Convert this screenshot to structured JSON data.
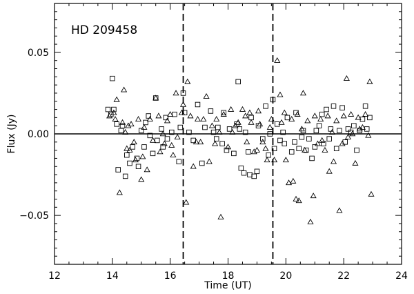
{
  "chart_data": {
    "type": "scatter",
    "title": "",
    "annotation": "HD 209458",
    "xlabel": "Time (UT)",
    "ylabel": "Flux (Jy)",
    "xlim": [
      12,
      24
    ],
    "ylim": [
      -0.08,
      0.08
    ],
    "x_ticks": [
      12,
      14,
      16,
      18,
      20,
      22,
      24
    ],
    "x_tick_labels": [
      "12",
      "14",
      "16",
      "18",
      "20",
      "22",
      "24"
    ],
    "y_ticks": [
      -0.05,
      0.0,
      0.05
    ],
    "y_tick_labels": [
      "−0.05",
      "0.00",
      "0.05"
    ],
    "reference_lines": {
      "horizontal_y": 0.0,
      "vertical_dashed_x": [
        16.45,
        19.55
      ]
    },
    "grid": false,
    "series": [
      {
        "marker": "square",
        "points": [
          [
            13.85,
            0.015
          ],
          [
            13.95,
            0.012
          ],
          [
            14.0,
            0.034
          ],
          [
            14.05,
            0.015
          ],
          [
            14.15,
            0.006
          ],
          [
            14.2,
            -0.022
          ],
          [
            14.3,
            0.002
          ],
          [
            14.35,
            0.005
          ],
          [
            14.45,
            -0.026
          ],
          [
            14.5,
            -0.013
          ],
          [
            14.6,
            -0.018
          ],
          [
            14.7,
            -0.008
          ],
          [
            14.85,
            -0.015
          ],
          [
            14.9,
            -0.02
          ],
          [
            15.0,
            0.002
          ],
          [
            15.1,
            -0.008
          ],
          [
            15.15,
            0.007
          ],
          [
            15.25,
            0.011
          ],
          [
            15.3,
            -0.001
          ],
          [
            15.4,
            -0.012
          ],
          [
            15.5,
            0.022
          ],
          [
            15.55,
            -0.004
          ],
          [
            15.7,
            0.003
          ],
          [
            15.75,
            -0.008
          ],
          [
            15.85,
            0.01
          ],
          [
            15.9,
            -0.003
          ],
          [
            16.05,
            0.001
          ],
          [
            16.15,
            0.012
          ],
          [
            16.3,
            -0.017
          ],
          [
            16.35,
            0.004
          ],
          [
            16.45,
            0.025
          ],
          [
            16.5,
            0.013
          ],
          [
            16.65,
            0.001
          ],
          [
            16.8,
            -0.004
          ],
          [
            16.95,
            0.018
          ],
          [
            17.1,
            -0.018
          ],
          [
            17.2,
            0.004
          ],
          [
            17.4,
            0.014
          ],
          [
            17.5,
            0.001
          ],
          [
            17.6,
            -0.003
          ],
          [
            17.65,
            0.004
          ],
          [
            17.8,
            -0.006
          ],
          [
            17.85,
            0.013
          ],
          [
            17.95,
            -0.01
          ],
          [
            18.05,
            0.003
          ],
          [
            18.2,
            -0.012
          ],
          [
            18.3,
            0.006
          ],
          [
            18.35,
            0.032
          ],
          [
            18.4,
            0.003
          ],
          [
            18.45,
            -0.021
          ],
          [
            18.55,
            -0.024
          ],
          [
            18.6,
            0.001
          ],
          [
            18.7,
            -0.011
          ],
          [
            18.75,
            -0.025
          ],
          [
            18.8,
            0.01
          ],
          [
            18.9,
            -0.026
          ],
          [
            19.0,
            -0.023
          ],
          [
            19.05,
            0.005
          ],
          [
            19.2,
            -0.003
          ],
          [
            19.3,
            0.017
          ],
          [
            19.4,
            -0.013
          ],
          [
            19.45,
            0.0
          ],
          [
            19.55,
            0.021
          ],
          [
            19.6,
            -0.009
          ],
          [
            19.7,
            0.006
          ],
          [
            19.8,
            -0.004
          ],
          [
            19.9,
            0.001
          ],
          [
            19.95,
            -0.006
          ],
          [
            20.05,
            0.01
          ],
          [
            20.2,
            -0.011
          ],
          [
            20.3,
            -0.005
          ],
          [
            20.35,
            0.013
          ],
          [
            20.45,
            -0.009
          ],
          [
            20.55,
            -0.002
          ],
          [
            20.6,
            0.002
          ],
          [
            20.7,
            -0.01
          ],
          [
            20.8,
            -0.003
          ],
          [
            20.9,
            -0.015
          ],
          [
            21.0,
            -0.008
          ],
          [
            21.05,
            0.002
          ],
          [
            21.15,
            0.005
          ],
          [
            21.25,
            0.012
          ],
          [
            21.3,
            -0.006
          ],
          [
            21.4,
            0.015
          ],
          [
            21.5,
            -0.003
          ],
          [
            21.55,
            0.003
          ],
          [
            21.65,
            0.017
          ],
          [
            21.75,
            -0.009
          ],
          [
            21.85,
            0.002
          ],
          [
            21.95,
            0.016
          ],
          [
            22.05,
            -0.005
          ],
          [
            22.15,
            0.003
          ],
          [
            22.25,
            0.001
          ],
          [
            22.35,
            0.005
          ],
          [
            22.45,
            -0.01
          ],
          [
            22.55,
            0.002
          ],
          [
            22.65,
            0.009
          ],
          [
            22.75,
            0.017
          ],
          [
            22.8,
            0.003
          ],
          [
            22.9,
            0.01
          ]
        ]
      },
      {
        "marker": "triangle",
        "points": [
          [
            13.9,
            0.011
          ],
          [
            14.05,
            0.013
          ],
          [
            14.1,
            0.009
          ],
          [
            14.15,
            0.021
          ],
          [
            14.25,
            -0.036
          ],
          [
            14.35,
            0.007
          ],
          [
            14.4,
            0.027
          ],
          [
            14.45,
            0.001
          ],
          [
            14.5,
            -0.009
          ],
          [
            14.55,
            0.005
          ],
          [
            14.6,
            -0.01
          ],
          [
            14.65,
            0.006
          ],
          [
            14.75,
            -0.005
          ],
          [
            14.8,
            -0.016
          ],
          [
            14.9,
            0.009
          ],
          [
            15.0,
            -0.028
          ],
          [
            15.05,
            -0.014
          ],
          [
            15.1,
            0.004
          ],
          [
            15.2,
            -0.022
          ],
          [
            15.3,
            0.009
          ],
          [
            15.4,
            -0.004
          ],
          [
            15.5,
            0.022
          ],
          [
            15.6,
            0.011
          ],
          [
            15.65,
            -0.011
          ],
          [
            15.75,
            0.0
          ],
          [
            15.8,
            -0.006
          ],
          [
            15.9,
            0.008
          ],
          [
            16.0,
            0.012
          ],
          [
            16.05,
            -0.007
          ],
          [
            16.1,
            -0.013
          ],
          [
            16.2,
            0.025
          ],
          [
            16.25,
            -0.002
          ],
          [
            16.4,
            0.013
          ],
          [
            16.45,
            0.018
          ],
          [
            16.55,
            -0.042
          ],
          [
            16.6,
            0.032
          ],
          [
            16.7,
            0.011
          ],
          [
            16.8,
            -0.02
          ],
          [
            16.9,
            -0.005
          ],
          [
            16.95,
            0.009
          ],
          [
            17.05,
            -0.005
          ],
          [
            17.15,
            0.009
          ],
          [
            17.25,
            0.023
          ],
          [
            17.35,
            -0.017
          ],
          [
            17.45,
            0.005
          ],
          [
            17.55,
            -0.006
          ],
          [
            17.6,
            0.009
          ],
          [
            17.7,
            0.001
          ],
          [
            17.75,
            -0.051
          ],
          [
            17.85,
            0.012
          ],
          [
            18.0,
            -0.008
          ],
          [
            18.1,
            0.015
          ],
          [
            18.15,
            0.001
          ],
          [
            18.25,
            0.005
          ],
          [
            18.35,
            0.007
          ],
          [
            18.5,
            0.015
          ],
          [
            18.6,
            0.011
          ],
          [
            18.65,
            -0.005
          ],
          [
            18.75,
            0.013
          ],
          [
            18.8,
            0.007
          ],
          [
            18.9,
            -0.011
          ],
          [
            19.0,
            -0.01
          ],
          [
            19.05,
            0.014
          ],
          [
            19.1,
            0.006
          ],
          [
            19.2,
            -0.005
          ],
          [
            19.3,
            -0.009
          ],
          [
            19.35,
            -0.016
          ],
          [
            19.45,
            0.004
          ],
          [
            19.5,
            0.009
          ],
          [
            19.6,
            -0.016
          ],
          [
            19.7,
            0.045
          ],
          [
            19.8,
            0.024
          ],
          [
            19.85,
            0.007
          ],
          [
            19.95,
            0.013
          ],
          [
            20.0,
            -0.016
          ],
          [
            20.1,
            -0.03
          ],
          [
            20.2,
            0.009
          ],
          [
            20.25,
            -0.029
          ],
          [
            20.35,
            -0.04
          ],
          [
            20.4,
            0.012
          ],
          [
            20.45,
            -0.041
          ],
          [
            20.55,
            0.003
          ],
          [
            20.6,
            0.025
          ],
          [
            20.65,
            -0.01
          ],
          [
            20.75,
            0.008
          ],
          [
            20.85,
            -0.054
          ],
          [
            20.95,
            -0.038
          ],
          [
            21.0,
            0.011
          ],
          [
            21.1,
            -0.006
          ],
          [
            21.2,
            0.009
          ],
          [
            21.25,
            -0.004
          ],
          [
            21.35,
            -0.01
          ],
          [
            21.45,
            0.011
          ],
          [
            21.5,
            -0.023
          ],
          [
            21.6,
            0.001
          ],
          [
            21.65,
            -0.017
          ],
          [
            21.75,
            0.008
          ],
          [
            21.85,
            -0.047
          ],
          [
            21.95,
            -0.006
          ],
          [
            22.0,
            0.011
          ],
          [
            22.1,
            0.034
          ],
          [
            22.15,
            -0.002
          ],
          [
            22.25,
            0.012
          ],
          [
            22.3,
            0.0
          ],
          [
            22.4,
            -0.018
          ],
          [
            22.5,
            0.01
          ],
          [
            22.55,
            0.003
          ],
          [
            22.65,
            0.004
          ],
          [
            22.75,
            0.012
          ],
          [
            22.85,
            -0.001
          ],
          [
            22.9,
            0.032
          ],
          [
            22.95,
            -0.037
          ]
        ]
      }
    ]
  }
}
